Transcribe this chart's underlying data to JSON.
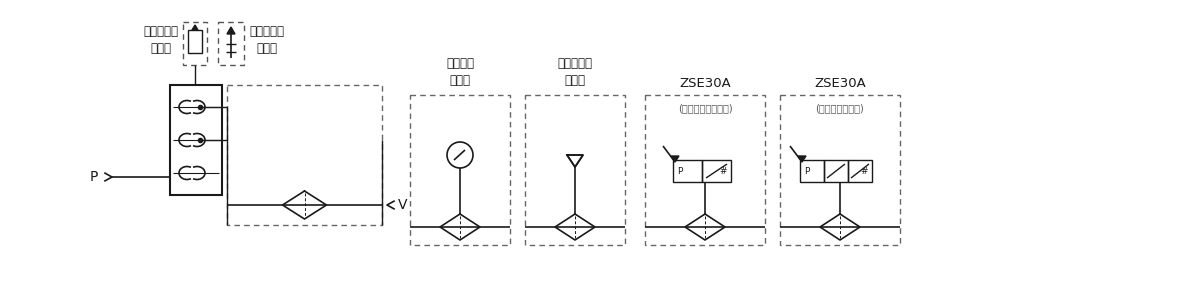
{
  "bg_color": "#ffffff",
  "lc": "#1a1a1a",
  "dc": "#777777",
  "tc": "#1a1a1a",
  "fig_width": 11.98,
  "fig_height": 2.9,
  "dpi": 100,
  "labels": {
    "silencer": "サイレンサ\nの場合",
    "port_exhaust": "ポート排気\nの場合",
    "gauge": "ゲージ付\nの場合",
    "adapter": "アダプタ付\nの場合",
    "zse30a_1": "ZSE30A",
    "zse30a_1_sub": "(アナログ出力なし)",
    "zse30a_2": "ZSE30A",
    "zse30a_2_sub": "(アナログ出力付)",
    "P": "P",
    "V": "V"
  }
}
